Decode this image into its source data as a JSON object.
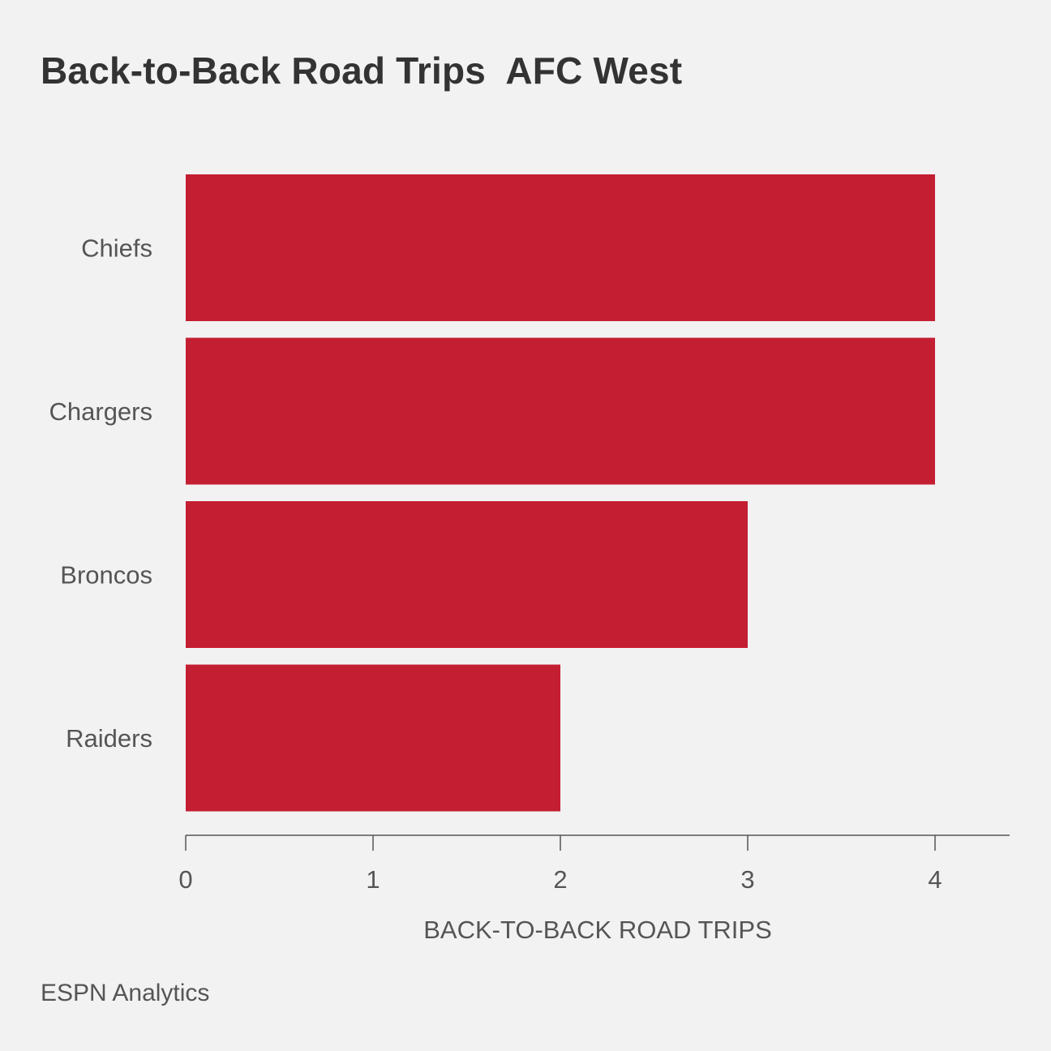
{
  "title": "Back-to-Back Road Trips  AFC West",
  "source": "ESPN Analytics",
  "colors": {
    "bar": "#c41e32",
    "background": "#f2f2f2",
    "text": "#333333",
    "axis": "#555555"
  },
  "chart_data": {
    "type": "bar",
    "orientation": "horizontal",
    "categories": [
      "Chiefs",
      "Chargers",
      "Broncos",
      "Raiders"
    ],
    "values": [
      4,
      4,
      3,
      2
    ],
    "title": "Back-to-Back Road Trips  AFC West",
    "xlabel": "BACK-TO-BACK ROAD TRIPS",
    "ylabel": "",
    "xlim": [
      0,
      4.4
    ],
    "xticks": [
      0,
      1,
      2,
      3,
      4
    ],
    "grid": false,
    "legend": "none"
  }
}
